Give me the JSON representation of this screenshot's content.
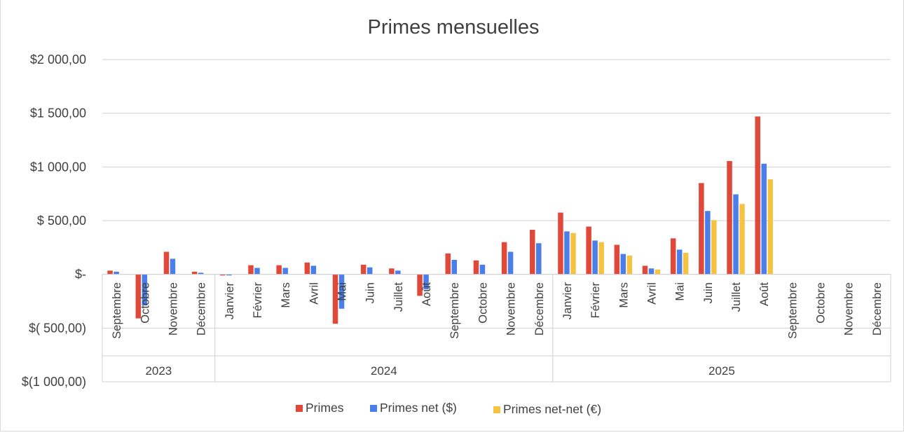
{
  "chart_data": {
    "type": "bar",
    "title": "Primes mensuelles",
    "xlabel": "",
    "ylabel": "",
    "ylim": [
      -1000,
      2000
    ],
    "y_ticks": [
      2000,
      1500,
      1000,
      500,
      0,
      -500,
      -1000
    ],
    "y_tick_labels": [
      "$2 000,00",
      "$1 500,00",
      "$1 000,00",
      "$ 500,00",
      "$-",
      "$( 500,00)",
      "$(1 000,00)"
    ],
    "grid": true,
    "legend_position": "bottom",
    "categories": [
      "Septembre",
      "Octobre",
      "Novembre",
      "Décembre",
      "Janvier",
      "Février",
      "Mars",
      "Avril",
      "Mai",
      "Juin",
      "Juillet",
      "Août",
      "Septembre",
      "Octobre",
      "Novembre",
      "Décembre",
      "Janvier",
      "Février",
      "Mars",
      "Avril",
      "Mai",
      "Juin",
      "Juillet",
      "Août",
      "Septembre",
      "Octobre",
      "Novembre",
      "Décembre"
    ],
    "year_groups": [
      {
        "label": "2023",
        "start": 0,
        "count": 4
      },
      {
        "label": "2024",
        "start": 4,
        "count": 12
      },
      {
        "label": "2025",
        "start": 16,
        "count": 12
      }
    ],
    "series": [
      {
        "name": "Primes",
        "color": "#e0483a",
        "values": [
          35,
          -410,
          210,
          25,
          -10,
          85,
          85,
          110,
          -460,
          90,
          55,
          -200,
          195,
          130,
          300,
          415,
          575,
          445,
          275,
          80,
          335,
          850,
          1055,
          1470,
          null,
          null,
          null,
          null
        ]
      },
      {
        "name": "Primes net ($)",
        "color": "#4a7ee8",
        "values": [
          25,
          -290,
          145,
          15,
          -10,
          60,
          60,
          80,
          -320,
          65,
          35,
          -140,
          135,
          90,
          210,
          290,
          400,
          315,
          190,
          55,
          230,
          590,
          745,
          1030,
          null,
          null,
          null,
          null
        ]
      },
      {
        "name": "Primes net-net (€)",
        "color": "#f5c242",
        "values": [
          null,
          null,
          null,
          null,
          null,
          null,
          null,
          null,
          null,
          null,
          null,
          null,
          null,
          null,
          null,
          null,
          385,
          300,
          175,
          45,
          200,
          505,
          655,
          885,
          null,
          null,
          null,
          null
        ]
      }
    ]
  }
}
